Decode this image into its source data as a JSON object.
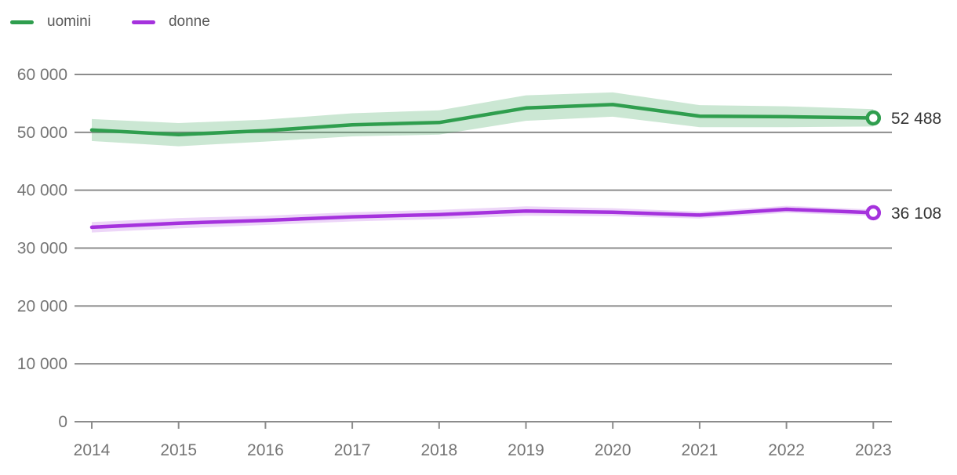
{
  "legend": {
    "items": [
      {
        "label": "uomini",
        "color": "#2f9e4e"
      },
      {
        "label": "donne",
        "color": "#a532dd"
      }
    ]
  },
  "chart_data": {
    "type": "line",
    "title": "",
    "xlabel": "",
    "ylabel": "",
    "x": [
      2014,
      2015,
      2016,
      2017,
      2018,
      2019,
      2020,
      2021,
      2022,
      2023
    ],
    "ylim": [
      0,
      60000
    ],
    "yticks": [
      0,
      10000,
      20000,
      30000,
      40000,
      50000,
      60000
    ],
    "ytick_labels": [
      "0",
      "10 000",
      "20 000",
      "30 000",
      "40 000",
      "50 000",
      "60 000"
    ],
    "grid": "horizontal-gridlines",
    "legend_position": "top-left",
    "series": [
      {
        "name": "uomini",
        "color": "#2f9e4e",
        "band_color": "rgba(47, 158, 78, 0.25)",
        "values": [
          50400,
          49600,
          50300,
          51300,
          51700,
          54200,
          54800,
          52800,
          52700,
          52488
        ],
        "band_upper": [
          52300,
          51600,
          52200,
          53300,
          53800,
          56400,
          56900,
          54700,
          54500,
          54000
        ],
        "band_lower": [
          48500,
          47600,
          48400,
          49300,
          49600,
          52000,
          52700,
          50900,
          50900,
          51000
        ],
        "end_label": "52 488"
      },
      {
        "name": "donne",
        "color": "#a532dd",
        "band_color": "rgba(165, 50, 221, 0.20)",
        "values": [
          33600,
          34300,
          34800,
          35400,
          35800,
          36400,
          36200,
          35700,
          36700,
          36108
        ],
        "band_upper": [
          34500,
          35200,
          35600,
          36200,
          36600,
          37200,
          36900,
          36300,
          37300,
          36650
        ],
        "band_lower": [
          32700,
          33400,
          34000,
          34600,
          35000,
          35600,
          35500,
          35100,
          36100,
          35550
        ],
        "end_label": "36 108"
      }
    ]
  },
  "colors": {
    "grid": "#8c8c8c",
    "axis_text": "#757575",
    "end_label_text": "#333333",
    "legend_text": "#595959",
    "background": "#ffffff"
  }
}
